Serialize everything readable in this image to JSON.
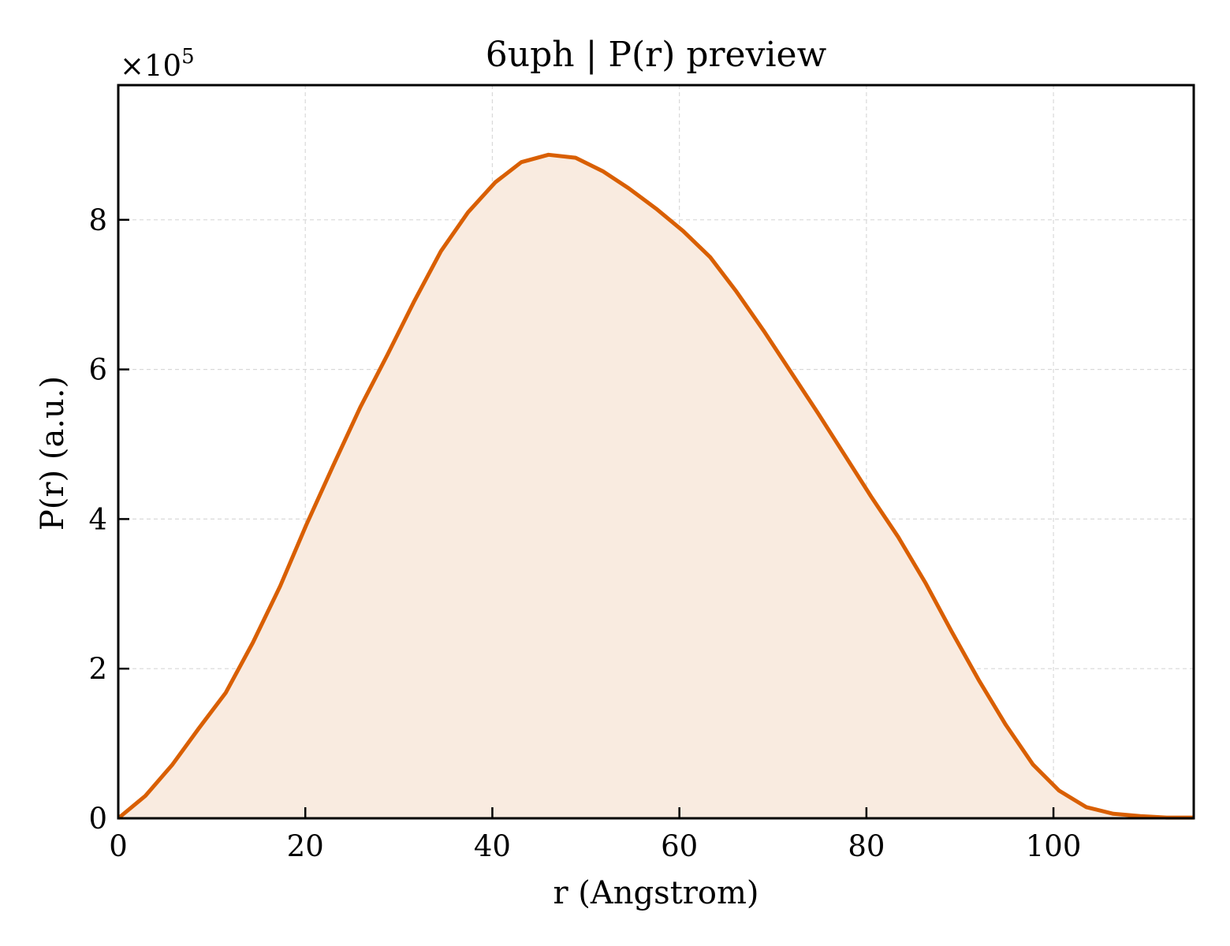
{
  "chart_data": {
    "type": "area",
    "title": "6uph | P(r) preview",
    "xlabel": "r (Angstrom)",
    "ylabel": "P(r) (a.u.)",
    "y_scale_label": "×10",
    "y_scale_exponent": "5",
    "xlim": [
      0,
      115
    ],
    "ylim": [
      0,
      9.8
    ],
    "y_multiplier": 100000,
    "x_ticks": [
      0,
      20,
      40,
      60,
      80,
      100
    ],
    "x_tick_labels": [
      "0",
      "20",
      "40",
      "60",
      "80",
      "100"
    ],
    "y_ticks": [
      0,
      2,
      4,
      6,
      8
    ],
    "y_tick_labels": [
      "0",
      "2",
      "4",
      "6",
      "8"
    ],
    "grid": true,
    "line_color": "#d95f02",
    "fill_color": "#f9ebe0",
    "series": [
      {
        "x": [
          0,
          2.9,
          5.8,
          8.6,
          11.5,
          14.4,
          17.3,
          20.1,
          23.0,
          25.9,
          28.8,
          31.6,
          34.5,
          37.4,
          40.3,
          43.1,
          46.0,
          48.9,
          51.8,
          54.6,
          57.5,
          60.4,
          63.3,
          66.1,
          69.0,
          71.9,
          74.8,
          77.6,
          80.5,
          83.4,
          86.3,
          89.1,
          92.0,
          94.9,
          97.8,
          100.6,
          103.5,
          106.4,
          109.3,
          112.1,
          115.0
        ],
        "values": [
          0.0,
          0.3,
          0.72,
          1.2,
          1.68,
          2.35,
          3.1,
          3.92,
          4.72,
          5.5,
          6.2,
          6.9,
          7.58,
          8.1,
          8.5,
          8.77,
          8.87,
          8.83,
          8.65,
          8.42,
          8.15,
          7.85,
          7.5,
          7.04,
          6.52,
          5.97,
          5.42,
          4.87,
          4.3,
          3.76,
          3.15,
          2.5,
          1.85,
          1.25,
          0.72,
          0.37,
          0.15,
          0.06,
          0.03,
          0.01,
          0.01
        ]
      }
    ]
  }
}
